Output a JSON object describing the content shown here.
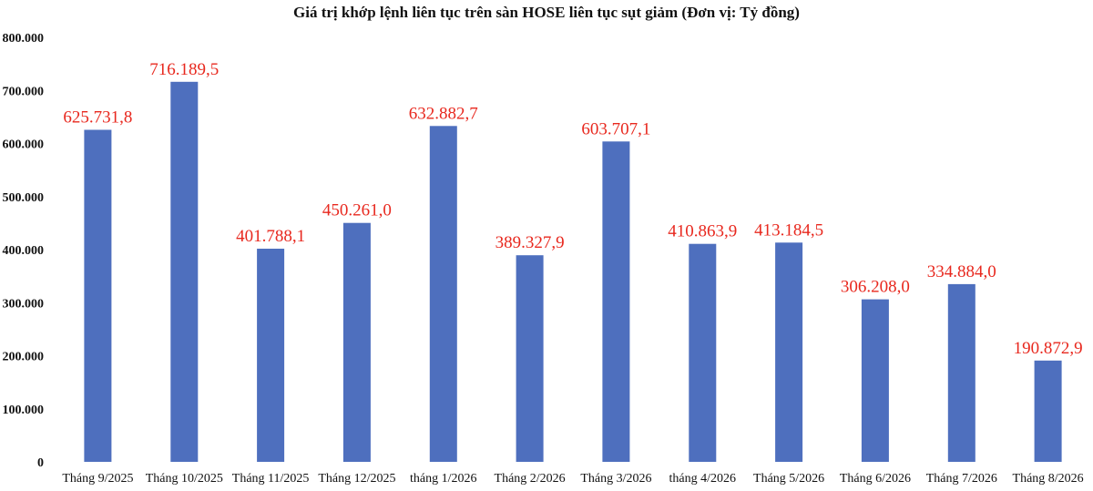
{
  "chart_data": {
    "type": "bar",
    "title": "Giá trị khớp lệnh liên tục trên sàn HOSE liên tục sụt giảm (Đơn vị: Tỷ đồng)",
    "categories": [
      "Tháng 9/2025",
      "Tháng 10/2025",
      "Tháng 11/2025",
      "Tháng 12/2025",
      "tháng 1/2026",
      "Tháng 2/2026",
      "Tháng 3/2026",
      "tháng 4/2026",
      "Tháng 5/2026",
      "Tháng 6/2026",
      "Tháng 7/2026",
      "Tháng 8/2026"
    ],
    "values": [
      625731.8,
      716189.5,
      401788.1,
      450261.0,
      632882.7,
      389327.9,
      603707.1,
      410863.9,
      413184.5,
      306208.0,
      334884.0,
      190872.9
    ],
    "data_labels": [
      "625.731,8",
      "716.189,5",
      "401.788,1",
      "450.261,0",
      "632.882,7",
      "389.327,9",
      "603.707,1",
      "410.863,9",
      "413.184,5",
      "306.208,0",
      "334.884,0",
      "190.872,9"
    ],
    "yticks": [
      0,
      100000,
      200000,
      300000,
      400000,
      500000,
      600000,
      700000,
      800000
    ],
    "ytick_labels": [
      "0",
      "100.000",
      "200.000",
      "300.000",
      "400.000",
      "500.000",
      "600.000",
      "700.000",
      "800.000"
    ],
    "ylim": [
      0,
      800000
    ],
    "xlabel": "",
    "ylabel": "",
    "grid": false,
    "legend": "none",
    "bar_color": "#4e6fbe",
    "label_color": "#e8281e"
  }
}
